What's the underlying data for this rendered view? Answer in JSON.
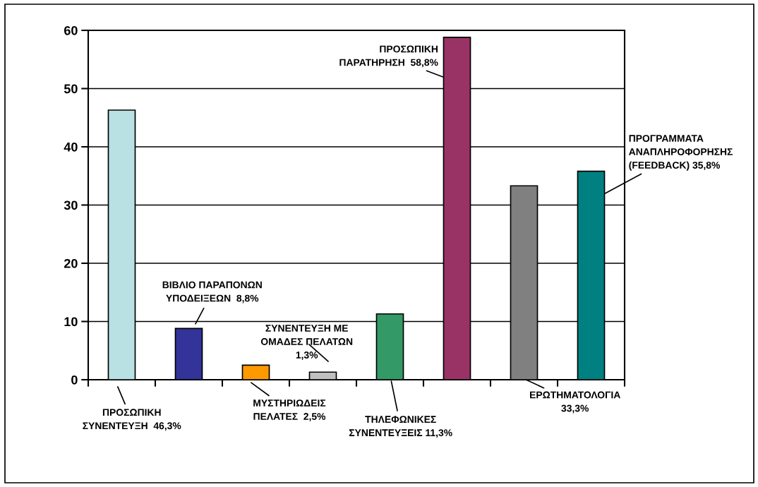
{
  "chart_data": {
    "type": "bar",
    "categories": [
      null,
      null,
      null,
      null,
      null,
      null,
      null,
      null
    ],
    "values": [
      46.3,
      8.8,
      2.5,
      1.3,
      11.3,
      58.8,
      33.3,
      35.8
    ],
    "colors": [
      "#b9e0e3",
      "#333399",
      "#ff9900",
      "#c0c0c0",
      "#339966",
      "#993366",
      "#808080",
      "#008080"
    ],
    "value_labels": [
      "ΠΡΟΣΩΠΙΚΗ\nΣΥΝΕΝΤΕΥΞΗ  46,3%",
      "ΒΙΒΛΙΟ ΠΑΡΑΠΟΝΩΝ\nΥΠΟΔΕΙΞΕΩΝ  8,8%",
      "ΜΥΣΤΗΡΙΩΔΕΙΣ\nΠΕΛΑΤΕΣ  2,5%",
      "ΣΥΝΕΝΤΕΥΞΗ ΜΕ\nΟΜΑΔΕΣ ΠΕΛΑΤΩΝ\n1,3%",
      "ΤΗΛΕΦΩΝΙΚΕΣ\nΣΥΝΕΝΤΕΥΞΕΙΣ 11,3%",
      "ΠΡΟΣΩΠΙΚΗ\nΠΑΡΑΤΗΡΗΣΗ  58,8%",
      "ΕΡΩΤΗΜΑΤΟΛΟΓΙΑ\n33,3%",
      "ΠΡΟΓΡΑΜΜΑΤΑ\nΑΝΑΠΛΗΡΟΦΟΡΗΣΗΣ\n(FEEDBACK) 35,8%"
    ],
    "ylim": [
      0,
      60
    ],
    "yticks": [
      0,
      10,
      20,
      30,
      40,
      50,
      60
    ],
    "grid": "y",
    "tick_labels": "y"
  }
}
